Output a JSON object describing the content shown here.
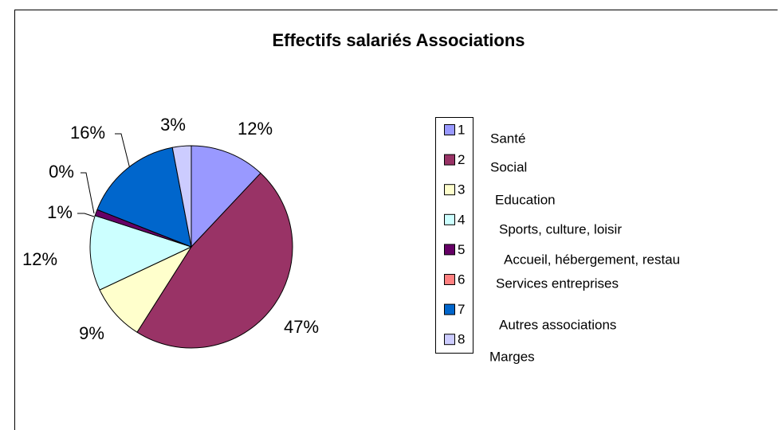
{
  "chart_data": {
    "type": "pie",
    "title": "Effectifs salariés Associations",
    "categories": [
      "1",
      "2",
      "3",
      "4",
      "5",
      "6",
      "7",
      "8"
    ],
    "values": [
      12,
      47,
      9,
      12,
      1,
      0,
      16,
      3
    ],
    "value_labels": [
      "12%",
      "47%",
      "9%",
      "12%",
      "1%",
      "0%",
      "16%",
      "3%"
    ],
    "colors": [
      "#9999ff",
      "#993366",
      "#ffffcc",
      "#ccffff",
      "#660066",
      "#ff8080",
      "#0066cc",
      "#ccccff"
    ],
    "annotations": [
      "Santé",
      "Social",
      "Education",
      "Sports, culture, loisir",
      "Accueil, hébergement, restau",
      "Services entreprises",
      "Autres associations",
      "Marges"
    ]
  }
}
